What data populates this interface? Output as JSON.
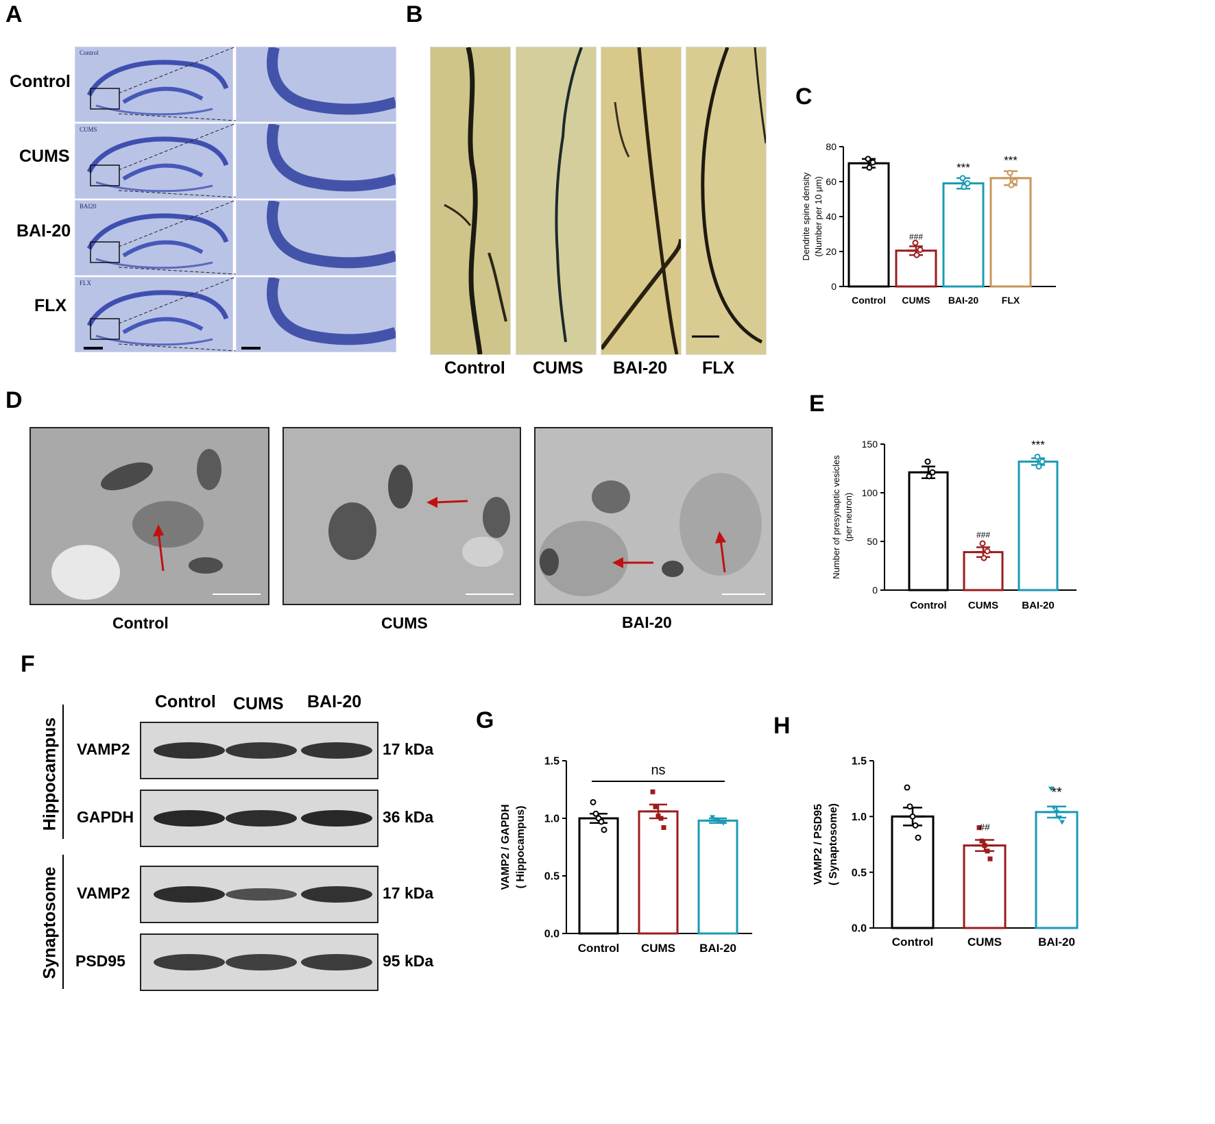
{
  "panels": {
    "A": {
      "letter": "A",
      "rows": [
        {
          "label": "Control",
          "tag": "Control"
        },
        {
          "label": "CUMS",
          "tag": "CUMS"
        },
        {
          "label": "BAI-20",
          "tag": "BAI20"
        },
        {
          "label": "FLX",
          "tag": "FLX"
        }
      ]
    },
    "B": {
      "letter": "B",
      "labels": [
        "Control",
        "CUMS",
        "BAI-20",
        "FLX"
      ]
    },
    "C": {
      "letter": "C"
    },
    "D": {
      "letter": "D",
      "labels": [
        "Control",
        "CUMS",
        "BAI-20"
      ]
    },
    "E": {
      "letter": "E"
    },
    "F": {
      "letter": "F",
      "lanes": [
        "Control",
        "CUMS",
        "BAI-20"
      ],
      "groups": [
        "Hippocampus",
        "Synaptosome"
      ],
      "bands": [
        {
          "protein": "VAMP2",
          "kda": "17 kDa"
        },
        {
          "protein": "GAPDH",
          "kda": "36 kDa"
        },
        {
          "protein": "VAMP2",
          "kda": "17 kDa"
        },
        {
          "protein": "PSD95",
          "kda": "95 kDa"
        }
      ]
    },
    "G": {
      "letter": "G"
    },
    "H": {
      "letter": "H"
    }
  },
  "colors": {
    "control": "#000000",
    "cums": "#9b1c1c",
    "bai20": "#1a9bb5",
    "flx": "#c8965a"
  },
  "chart_data": [
    {
      "id": "C",
      "type": "bar",
      "ylabel_lines": [
        "Dendrite spine density",
        "(Number per 10 μm)"
      ],
      "categories": [
        "Control",
        "CUMS",
        "BAI-20",
        "FLX"
      ],
      "values": [
        70.5,
        20.5,
        59,
        62
      ],
      "sem": [
        2.5,
        2.5,
        3,
        4
      ],
      "points": [
        [
          73,
          71,
          68
        ],
        [
          25,
          21,
          18
        ],
        [
          62,
          59,
          57
        ],
        [
          65,
          60,
          58
        ]
      ],
      "annotations": [
        "",
        "###",
        "***",
        "***"
      ],
      "ylim": [
        0,
        80
      ],
      "yticks": [
        0,
        20,
        40,
        60,
        80
      ],
      "marker": "circle"
    },
    {
      "id": "E",
      "type": "bar",
      "ylabel_lines": [
        "Number of presynaptic vesicles",
        "(per neuron)"
      ],
      "categories": [
        "Control",
        "CUMS",
        "BAI-20"
      ],
      "values": [
        121,
        39,
        132
      ],
      "sem": [
        6,
        5,
        3.5
      ],
      "points": [
        [
          132,
          121,
          117
        ],
        [
          48,
          40,
          33
        ],
        [
          137,
          132,
          127
        ]
      ],
      "annotations": [
        "",
        "###",
        "***"
      ],
      "ylim": [
        0,
        150
      ],
      "yticks": [
        0,
        50,
        100,
        150
      ],
      "marker": "circle"
    },
    {
      "id": "G",
      "type": "bar",
      "ylabel_lines": [
        "VAMP2 / GAPDH",
        "( Hippocampus)"
      ],
      "categories": [
        "Control",
        "CUMS",
        "BAI-20"
      ],
      "values": [
        1.0,
        1.06,
        0.98
      ],
      "sem": [
        0.04,
        0.06,
        0.02
      ],
      "points": [
        [
          1.14,
          1.04,
          1.0,
          0.97,
          0.9
        ],
        [
          1.23,
          1.1,
          1.02,
          1.0,
          0.92
        ],
        [
          1.01,
          0.99,
          0.98,
          0.97,
          0.96
        ]
      ],
      "annotations": [],
      "bracket_label": "ns",
      "ylim": [
        0,
        1.5
      ],
      "yticks": [
        0.0,
        0.5,
        1.0,
        1.5
      ],
      "marker": "mixed"
    },
    {
      "id": "H",
      "type": "bar",
      "ylabel_lines": [
        "VAMP2 / PSD95",
        "( Synaptosome)"
      ],
      "categories": [
        "Control",
        "CUMS",
        "BAI-20"
      ],
      "values": [
        1.0,
        0.74,
        1.04
      ],
      "sem": [
        0.08,
        0.05,
        0.05
      ],
      "points": [
        [
          1.26,
          1.09,
          1.0,
          0.92,
          0.81
        ],
        [
          0.9,
          0.78,
          0.74,
          0.69,
          0.62
        ],
        [
          1.25,
          1.08,
          1.04,
          0.99,
          0.95
        ]
      ],
      "annotations": [
        "",
        "##",
        "**"
      ],
      "ylim": [
        0,
        1.5
      ],
      "yticks": [
        0.0,
        0.5,
        1.0,
        1.5
      ],
      "marker": "mixed"
    }
  ]
}
